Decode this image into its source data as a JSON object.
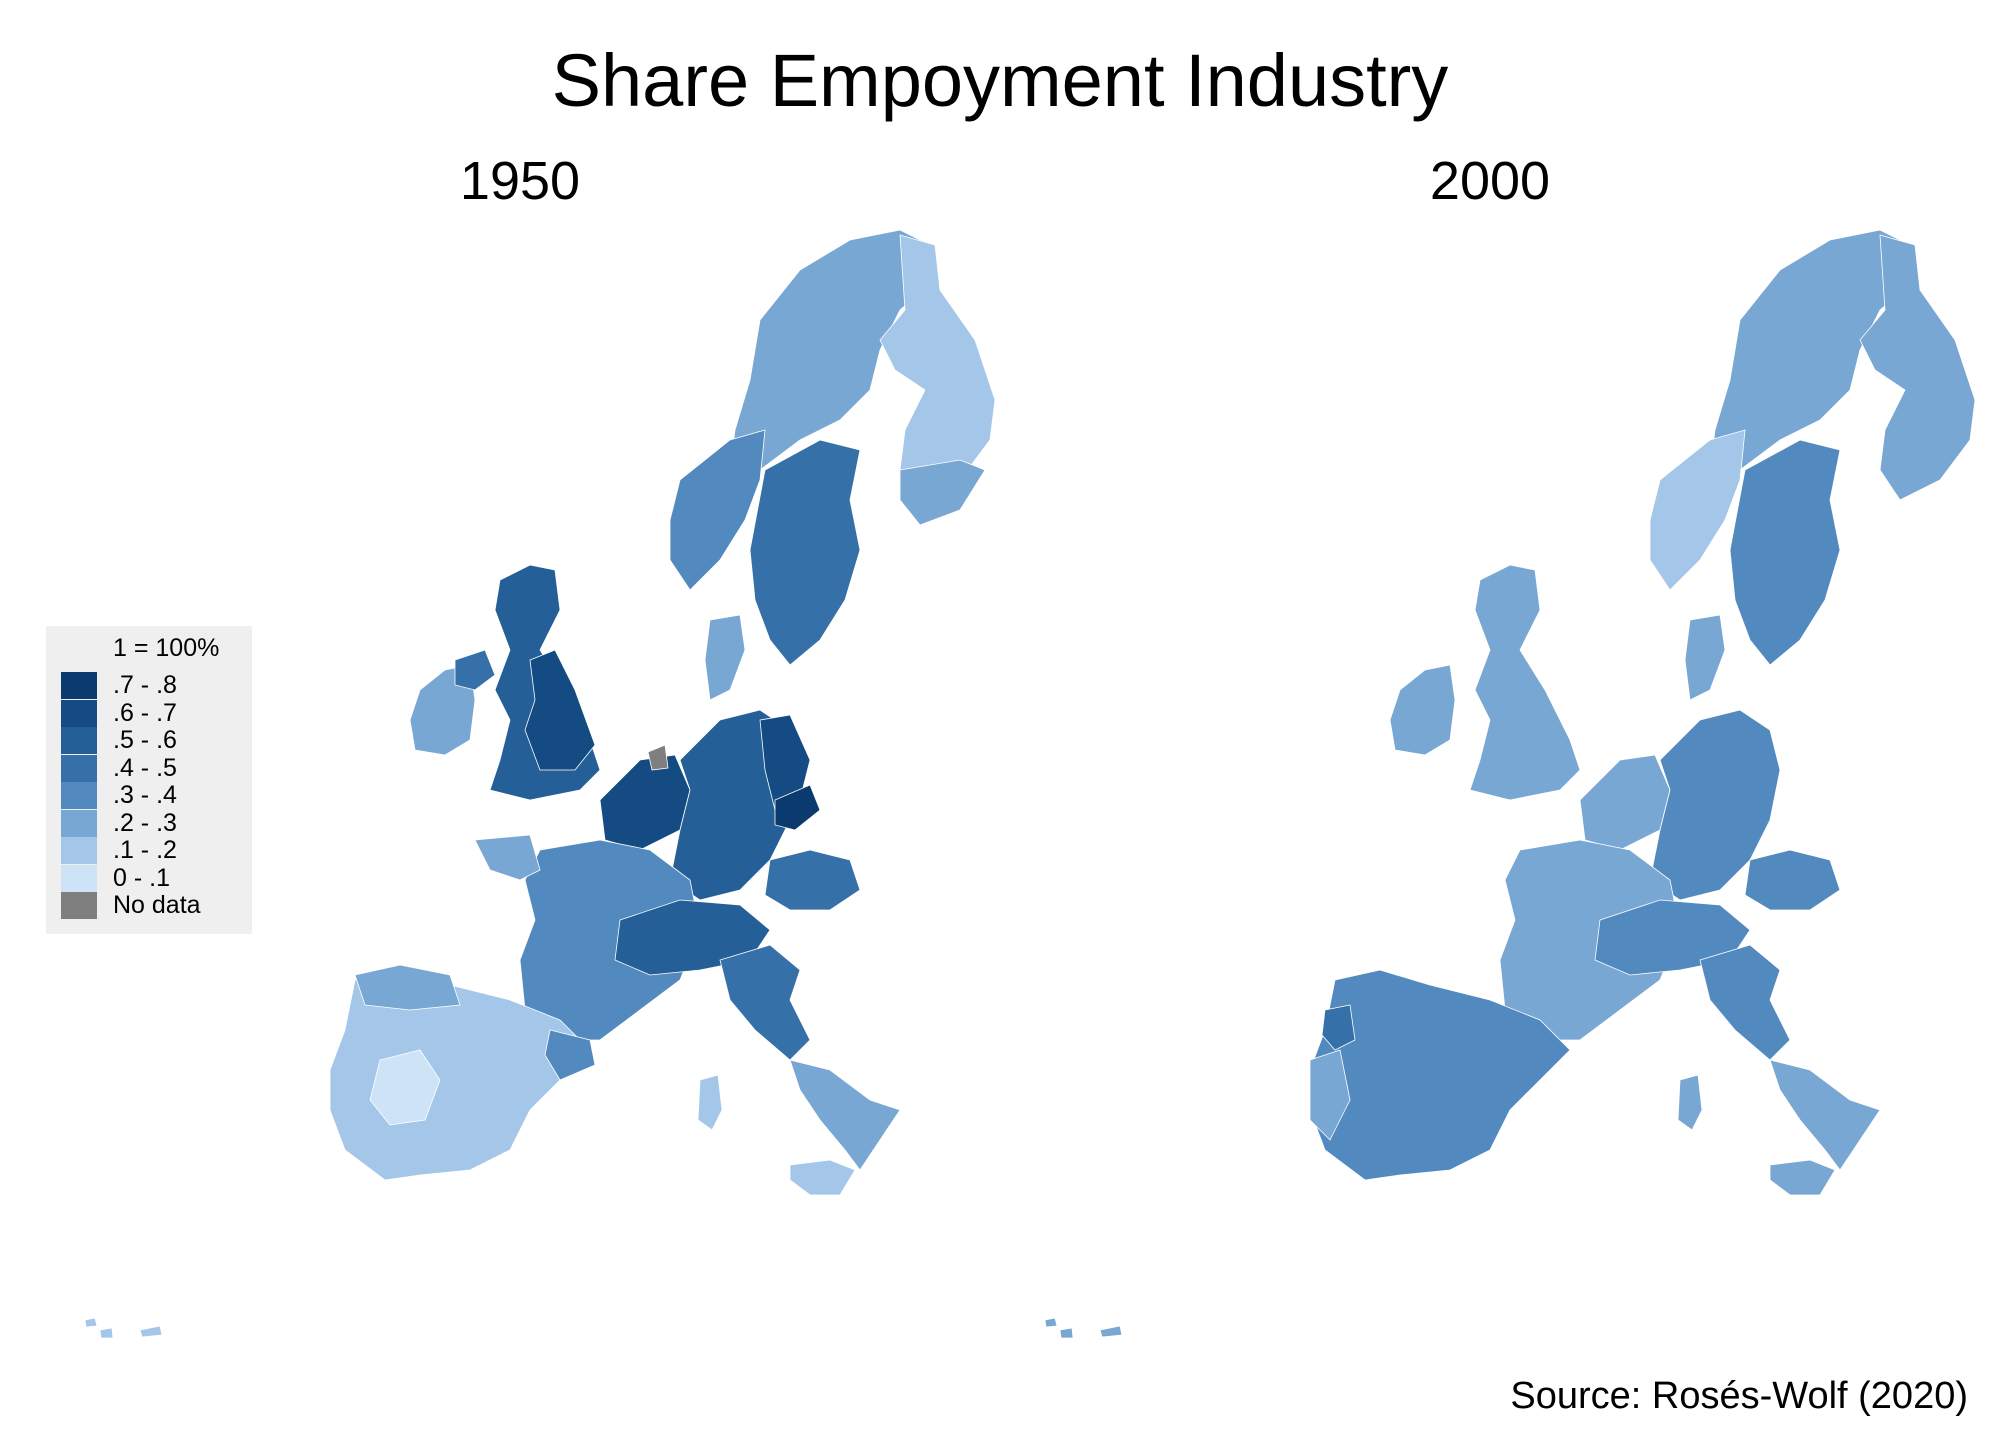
{
  "title": "Share Empoyment Industry",
  "panels": [
    {
      "label": "1950"
    },
    {
      "label": "2000"
    }
  ],
  "legend": {
    "header": "1 = 100%",
    "items": [
      {
        "label": ".7 - .8",
        "color": "#0b3a6e"
      },
      {
        "label": ".6 - .7",
        "color": "#134b82"
      },
      {
        "label": ".5 - .6",
        "color": "#245f97"
      },
      {
        "label": ".4 - .5",
        "color": "#3670a8"
      },
      {
        "label": ".3 - .4",
        "color": "#5289bf"
      },
      {
        "label": ".2 - .3",
        "color": "#79a7d3"
      },
      {
        "label": ".1 - .2",
        "color": "#a3c6e9"
      },
      {
        "label": "0 - .1",
        "color": "#cfe3f7"
      },
      {
        "label": "No data",
        "color": "#7f7f7f"
      }
    ]
  },
  "map_regions": {
    "1950": {
      "scandinavia_north": "#79a7d3",
      "finland": "#a3c6e9",
      "finland_south": "#79a7d3",
      "norway_west": "#5289bf",
      "sweden_central": "#3670a8",
      "great_britain": "#245f97",
      "england_north": "#134b82",
      "ireland": "#79a7d3",
      "northern_ireland": "#3670a8",
      "benelux": "#134b82",
      "germany": "#245f97",
      "germany_east": "#134b82",
      "saxony": "#0b3a6e",
      "france": "#5289bf",
      "france_west": "#79a7d3",
      "alps": "#245f97",
      "italy_north": "#3670a8",
      "italy_south": "#79a7d3",
      "sicily_sardinia": "#a3c6e9",
      "iberia": "#a3c6e9",
      "iberia_center": "#cfe3f7",
      "catalonia": "#5289bf",
      "spain_north": "#79a7d3",
      "denmark": "#79a7d3",
      "austria": "#3670a8",
      "islands": "#a3c6e9",
      "netherlands_nodata": "#7f7f7f"
    },
    "2000": {
      "scandinavia_north": "#79a7d3",
      "finland": "#79a7d3",
      "norway_coast": "#a3c6e9",
      "sweden_central": "#5289bf",
      "great_britain": "#79a7d3",
      "ireland": "#79a7d3",
      "benelux": "#79a7d3",
      "germany": "#5289bf",
      "france": "#79a7d3",
      "alps": "#5289bf",
      "italy_north": "#5289bf",
      "italy_south": "#79a7d3",
      "sicily_sardinia": "#79a7d3",
      "iberia": "#5289bf",
      "iberia_west": "#79a7d3",
      "portugal_north": "#3670a8",
      "denmark": "#79a7d3",
      "austria": "#5289bf",
      "islands": "#79a7d3"
    }
  },
  "source": "Source: Rosés-Wolf (2020)"
}
